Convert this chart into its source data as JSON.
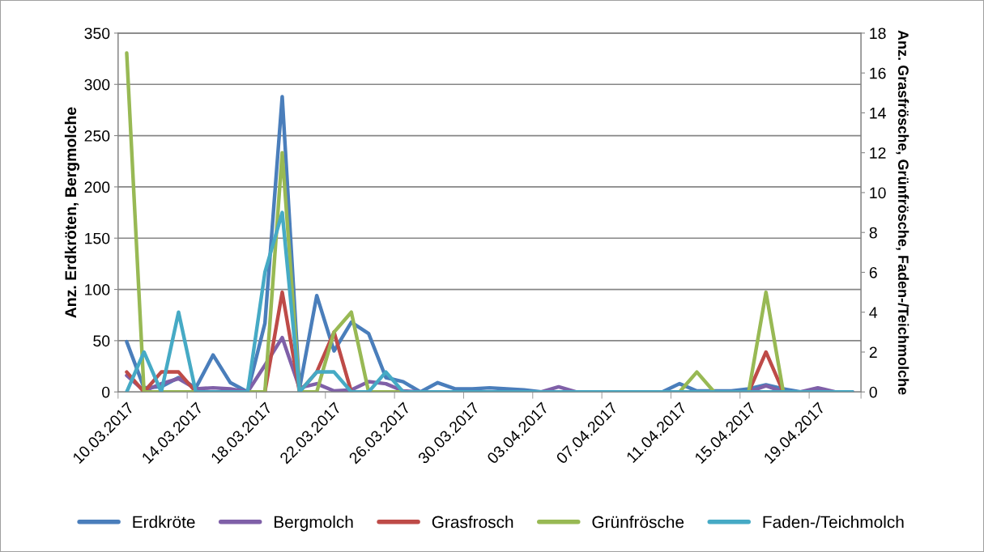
{
  "chart_data": {
    "type": "line",
    "categories": [
      "10.03.2017",
      null,
      null,
      null,
      "14.03.2017",
      null,
      null,
      null,
      "18.03.2017",
      null,
      null,
      null,
      "22.03.2017",
      null,
      null,
      null,
      "26.03.2017",
      null,
      null,
      null,
      "30.03.2017",
      null,
      null,
      null,
      "03.04.2017",
      null,
      null,
      null,
      "07.04.2017",
      null,
      null,
      null,
      "11.04.2017",
      null,
      null,
      null,
      "15.04.2017",
      null,
      null,
      null,
      "19.04.2017",
      null,
      null
    ],
    "ylabel": "Anz. Erdkröten, Bergmolche",
    "y2label": "Anz. Grasfrösche, Grünfrösche, Faden-/Teichmolche",
    "ylim": [
      0,
      350
    ],
    "yticks": [
      0,
      50,
      100,
      150,
      200,
      250,
      300,
      350
    ],
    "y2lim": [
      0,
      18
    ],
    "y2ticks": [
      0,
      2,
      4,
      6,
      8,
      10,
      12,
      14,
      16,
      18
    ],
    "grid": "y",
    "legend": "bottom",
    "marker": "none",
    "line_style": "solid",
    "series": [
      {
        "name": "Erdkröte",
        "color": "#4a7ebb",
        "values": [
          49,
          4,
          5,
          14,
          4,
          36,
          9,
          0,
          67,
          288,
          3,
          94,
          40,
          68,
          57,
          14,
          10,
          0,
          9,
          3,
          3,
          4,
          3,
          2,
          0,
          0,
          0,
          0,
          0,
          0,
          0,
          0,
          8,
          1,
          1,
          1,
          3,
          7,
          3,
          0,
          1,
          0,
          0
        ]
      },
      {
        "name": "Bergmolch",
        "color": "#7f60a8",
        "values": [
          16,
          1,
          8,
          13,
          3,
          4,
          3,
          0,
          26,
          53,
          4,
          8,
          1,
          2,
          10,
          8,
          1,
          0,
          0,
          0,
          0,
          0,
          0,
          0,
          0,
          5,
          0,
          0,
          0,
          0,
          0,
          0,
          0,
          0,
          0,
          0,
          0,
          6,
          0,
          0,
          4,
          0,
          0
        ]
      },
      {
        "name": "Grasfrosch",
        "color": "#be4b48",
        "axis": "y2",
        "values": [
          1,
          0,
          1,
          1,
          0,
          null,
          null,
          null,
          0,
          5,
          0,
          1,
          3,
          0,
          null,
          null,
          null,
          null,
          null,
          null,
          null,
          null,
          null,
          null,
          null,
          null,
          null,
          null,
          null,
          null,
          null,
          null,
          null,
          null,
          null,
          null,
          0,
          2,
          0,
          null,
          null,
          null,
          null
        ]
      },
      {
        "name": "Grünfrösche",
        "color": "#98b954",
        "axis": "y2",
        "values": [
          17,
          0,
          0,
          0,
          0,
          null,
          null,
          0,
          0,
          12,
          0,
          0,
          3,
          4,
          0,
          0,
          0,
          null,
          null,
          null,
          null,
          null,
          null,
          null,
          null,
          null,
          null,
          null,
          null,
          null,
          null,
          null,
          0,
          1,
          0,
          null,
          0,
          5,
          0,
          null,
          null,
          null,
          null
        ]
      },
      {
        "name": "Faden-/Teichmolch",
        "color": "#46aac5",
        "axis": "y2",
        "values": [
          0,
          2,
          0,
          4,
          0,
          0,
          0,
          0,
          6,
          9,
          0,
          1,
          1,
          0,
          0,
          1,
          0,
          0,
          0,
          0,
          0,
          0,
          0,
          0,
          0,
          0,
          0,
          0,
          0,
          0,
          0,
          0,
          0,
          0,
          0,
          0,
          0,
          0,
          0,
          0,
          0,
          0,
          0
        ]
      }
    ]
  }
}
